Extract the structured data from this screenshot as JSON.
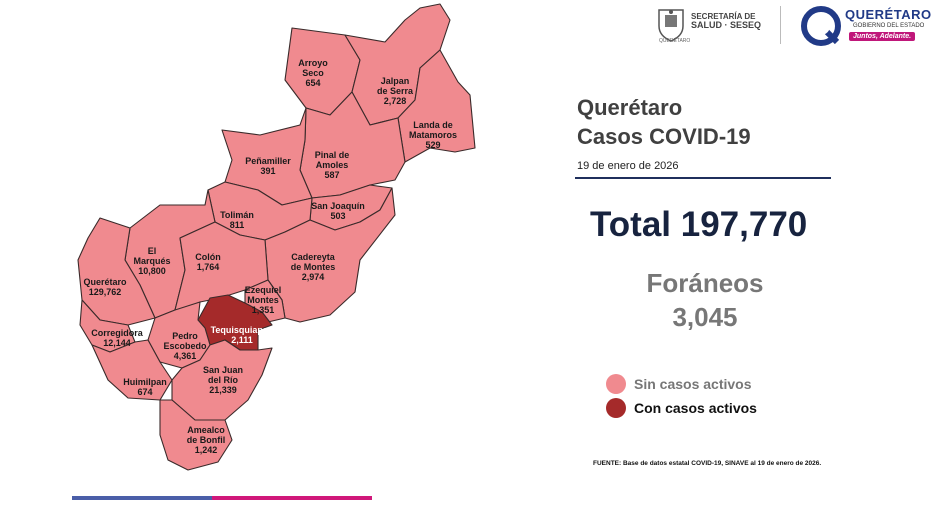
{
  "header": {
    "salud_line1": "SECRETARÍA DE",
    "salud_line2": "SALUD · SESEQ",
    "salud_state": "QUERÉTARO",
    "gov_title": "QUERÉTARO",
    "gov_subtitle": "GOBIERNO DEL ESTADO",
    "gov_slogan": "Juntos, Adelante.",
    "gov_brand_color": "#213a87",
    "slogan_color": "#c0177a"
  },
  "title_line1": "Querétaro",
  "title_line2": "Casos COVID-19",
  "date": "19 de enero de 2026",
  "total_label": "Total 197,770",
  "foraneos_label": "Foráneos",
  "foraneos_value": "3,045",
  "legend": [
    {
      "label": "Sin casos activos",
      "color": "#f08a8f"
    },
    {
      "label": "Con casos activos",
      "color": "#a52a2a"
    }
  ],
  "footer": "FUENTE:  Base de datos estatal  COVID-19,  SINAVE   al 19 de enero de 2026.",
  "municipalities": [
    {
      "id": "arroyo-seco",
      "name": "Arroyo\nSeco",
      "cases": "654",
      "active": false
    },
    {
      "id": "jalpan",
      "name": "Jalpan\nde Serra",
      "cases": "2,728",
      "active": false
    },
    {
      "id": "landa",
      "name": "Landa de\nMatamoros",
      "cases": "529",
      "active": false
    },
    {
      "id": "pinal",
      "name": "Pinal de\nAmoles",
      "cases": "587",
      "active": false
    },
    {
      "id": "penamiller",
      "name": "Peñamiller",
      "cases": "391",
      "active": false
    },
    {
      "id": "san-joaquin",
      "name": "San Joaquín",
      "cases": "503",
      "active": false
    },
    {
      "id": "toliman",
      "name": "Tolimán",
      "cases": "811",
      "active": false
    },
    {
      "id": "el-marques",
      "name": "El\nMarqués",
      "cases": "10,800",
      "active": false
    },
    {
      "id": "colon",
      "name": "Colón",
      "cases": "1,764",
      "active": false
    },
    {
      "id": "cadereyta",
      "name": "Cadereyta\nde Montes",
      "cases": "2,974",
      "active": false
    },
    {
      "id": "queretaro",
      "name": "Querétaro",
      "cases": "129,762",
      "active": false
    },
    {
      "id": "ezequiel",
      "name": "Ezequiel\nMontes",
      "cases": "1,351",
      "active": false
    },
    {
      "id": "tequisquiapan",
      "name": "Tequisquiapan",
      "cases": "2,111",
      "active": true
    },
    {
      "id": "corregidora",
      "name": "Corregidora",
      "cases": "12,144",
      "active": false
    },
    {
      "id": "pedro-escobedo",
      "name": "Pedro\nEscobedo",
      "cases": "4,361",
      "active": false
    },
    {
      "id": "huimilpan",
      "name": "Huimilpan",
      "cases": "674",
      "active": false
    },
    {
      "id": "san-juan",
      "name": "San Juan\ndel Río",
      "cases": "21,339",
      "active": false
    },
    {
      "id": "amealco",
      "name": "Amealco\nde Bonfil",
      "cases": "1,242",
      "active": false
    }
  ]
}
